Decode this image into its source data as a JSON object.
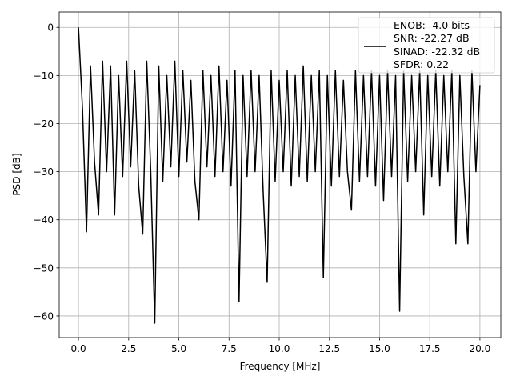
{
  "chart_data": {
    "type": "line",
    "xlabel": "Frequency [MHz]",
    "ylabel": "PSD [dB]",
    "x": [
      0,
      0.2,
      0.4,
      0.6,
      0.8,
      1,
      1.2,
      1.4,
      1.6,
      1.8,
      2,
      2.2,
      2.4,
      2.6,
      2.8,
      3,
      3.2,
      3.4,
      3.6,
      3.8,
      4,
      4.2,
      4.4,
      4.6,
      4.8,
      5,
      5.2,
      5.4,
      5.6,
      5.8,
      6,
      6.2,
      6.4,
      6.6,
      6.8,
      7,
      7.2,
      7.4,
      7.6,
      7.8,
      8,
      8.2,
      8.4,
      8.6,
      8.8,
      9,
      9.2,
      9.4,
      9.6,
      9.8,
      10,
      10.2,
      10.4,
      10.6,
      10.8,
      11,
      11.2,
      11.4,
      11.6,
      11.8,
      12,
      12.2,
      12.4,
      12.6,
      12.8,
      13,
      13.2,
      13.4,
      13.6,
      13.8,
      14,
      14.2,
      14.4,
      14.6,
      14.8,
      15,
      15.2,
      15.4,
      15.6,
      15.8,
      16,
      16.2,
      16.4,
      16.6,
      16.8,
      17,
      17.2,
      17.4,
      17.6,
      17.8,
      18,
      18.2,
      18.4,
      18.6,
      18.8,
      19,
      19.2,
      19.4,
      19.6,
      19.8,
      20
    ],
    "series": [
      {
        "name": "ENOB: -4.0 bits\nSNR: -22.27 dB\nSINAD: -22.32 dB\nSFDR: 0.22",
        "color": "#000000",
        "values": [
          0,
          -17,
          -42.5,
          -8,
          -28,
          -39,
          -7,
          -30,
          -8,
          -39,
          -10,
          -31,
          -7,
          -29,
          -9,
          -33,
          -43,
          -7,
          -30,
          -61.5,
          -8,
          -32,
          -10,
          -29,
          -7,
          -31,
          -9,
          -28,
          -11,
          -32,
          -40,
          -9,
          -29,
          -10,
          -31,
          -8,
          -30,
          -11,
          -33,
          -9,
          -57,
          -10,
          -31,
          -9,
          -30,
          -10,
          -34,
          -53,
          -9,
          -32,
          -11,
          -30,
          -9,
          -33,
          -10,
          -31,
          -8,
          -32,
          -10,
          -30,
          -9,
          -52,
          -10,
          -33,
          -9,
          -31,
          -11,
          -30,
          -38,
          -9,
          -32,
          -10,
          -31,
          -9,
          -33,
          -10,
          -36,
          -9,
          -31,
          -10,
          -59,
          -9,
          -32,
          -10,
          -30,
          -9,
          -39,
          -10,
          -31,
          -9,
          -33,
          -10,
          -30,
          -9,
          -45,
          -10,
          -31,
          -45,
          -9,
          -30,
          -12
        ]
      }
    ],
    "xlim": [
      -0.96,
      21.04
    ],
    "ylim": [
      -64.5,
      3.2
    ],
    "xticks": [
      {
        "value": 0,
        "label": "0.0"
      },
      {
        "value": 2.5,
        "label": "2.5"
      },
      {
        "value": 5,
        "label": "5.0"
      },
      {
        "value": 7.5,
        "label": "7.5"
      },
      {
        "value": 10,
        "label": "10.0"
      },
      {
        "value": 12.5,
        "label": "12.5"
      },
      {
        "value": 15,
        "label": "15.0"
      },
      {
        "value": 17.5,
        "label": "17.5"
      },
      {
        "value": 20,
        "label": "20.0"
      }
    ],
    "yticks": [
      {
        "value": -60,
        "label": "−60"
      },
      {
        "value": -50,
        "label": "−50"
      },
      {
        "value": -40,
        "label": "−40"
      },
      {
        "value": -30,
        "label": "−30"
      },
      {
        "value": -20,
        "label": "−20"
      },
      {
        "value": -10,
        "label": "−10"
      },
      0
    ],
    "grid": true,
    "legend": "upper right"
  }
}
